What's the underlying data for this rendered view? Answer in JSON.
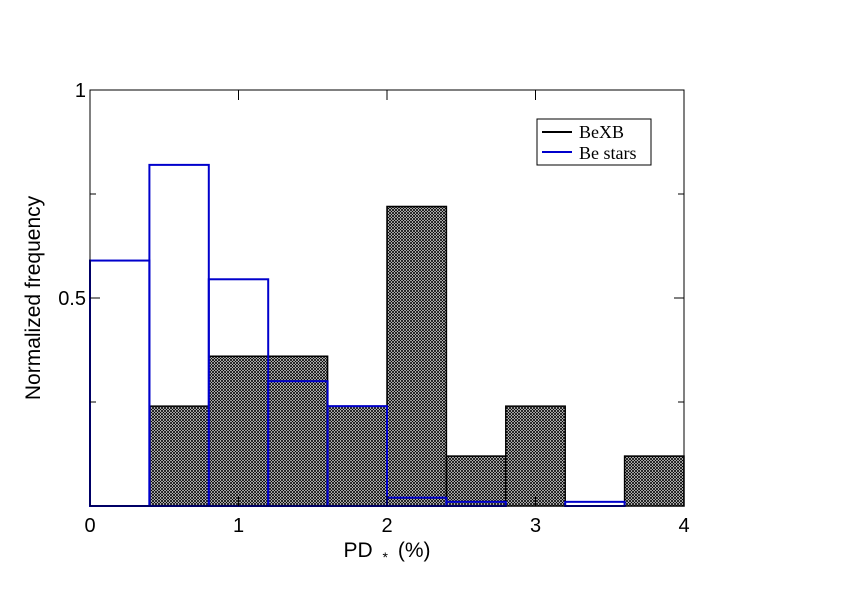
{
  "chart_data": {
    "type": "bar",
    "xlabel": "PD",
    "xlabel_subscript": "*",
    "xlabel_unit": "(%)",
    "ylabel": "Normalized frequency",
    "xlim": [
      0,
      4
    ],
    "ylim": [
      0,
      1
    ],
    "x_ticks": [
      0,
      1,
      2,
      3,
      4
    ],
    "x_tick_labels": [
      "0",
      "1",
      "2",
      "3",
      "4"
    ],
    "y_ticks": [
      0.5,
      1
    ],
    "y_tick_labels": [
      "0.5",
      "1"
    ],
    "y_minor_ticks": [
      0.25,
      0.75
    ],
    "grid": false,
    "legend_position": "top-right",
    "bin_edges": [
      0,
      0.4,
      0.8,
      1.2,
      1.6,
      2.0,
      2.4,
      2.8,
      3.2,
      3.6,
      4.0
    ],
    "series": [
      {
        "name": "BeXB",
        "color": "#000000",
        "hatched": true,
        "values": [
          0,
          0.24,
          0.36,
          0.36,
          0.24,
          0.72,
          0.12,
          0.24,
          0,
          0.12
        ]
      },
      {
        "name": "Be stars",
        "color": "#0000cc",
        "hatched": false,
        "values": [
          0.59,
          0.82,
          0.545,
          0.3,
          0.24,
          0.02,
          0.01,
          0,
          0.01,
          0
        ]
      }
    ]
  }
}
